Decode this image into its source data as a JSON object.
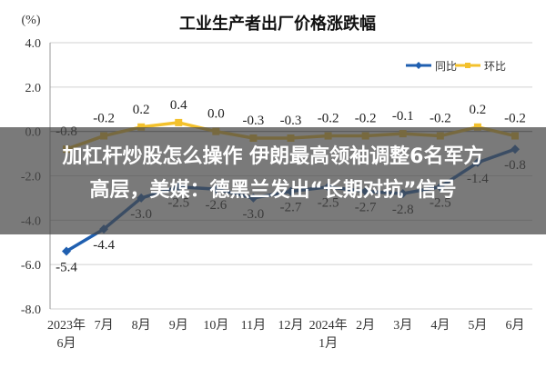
{
  "chart_data": {
    "type": "line",
    "title": "工业生产者出厂价格涨跌幅",
    "ylabel": "(%)",
    "ylim": [
      -8.0,
      4.0
    ],
    "yticks": [
      "4.0",
      "2.0",
      "0.0",
      "-2.0",
      "-4.0",
      "-6.0",
      "-8.0"
    ],
    "categories": [
      "2023年\n6月",
      "7月",
      "8月",
      "9月",
      "10月",
      "11月",
      "12月",
      "2024年\n1月",
      "2月",
      "3月",
      "4月",
      "5月",
      "6月"
    ],
    "legend": [
      "同比",
      "环比"
    ],
    "series": [
      {
        "name": "同比",
        "color": "#1f5fb0",
        "values": [
          -5.4,
          -4.4,
          -3.0,
          -2.5,
          -2.6,
          -3.0,
          -2.7,
          -2.5,
          -2.7,
          -2.8,
          -2.5,
          -1.4,
          -0.8
        ],
        "labels": [
          "-5.4",
          "-4.4",
          "-3.0",
          "-2.5",
          "-2.6",
          "-3.0",
          "-2.7",
          "-2.5",
          "-2.7",
          "-2.8",
          "-2.5",
          "-1.4",
          "-0.8"
        ]
      },
      {
        "name": "环比",
        "color": "#f3c12c",
        "values": [
          -0.8,
          -0.2,
          0.2,
          0.4,
          0.0,
          -0.3,
          -0.3,
          -0.2,
          -0.2,
          -0.1,
          -0.2,
          0.2,
          -0.2
        ],
        "labels": [
          "-0.8",
          "-0.2",
          "0.2",
          "0.4",
          "0.0",
          "-0.3",
          "-0.3",
          "-0.2",
          "-0.2",
          "-0.1",
          "-0.2",
          "0.2",
          "-0.2"
        ]
      }
    ]
  },
  "overlay": {
    "line1": "加杠杆炒股怎么操作 伊朗最高领袖调整6名军方",
    "line2": "高层，美媒：德黑兰发出“长期对抗”信号"
  }
}
